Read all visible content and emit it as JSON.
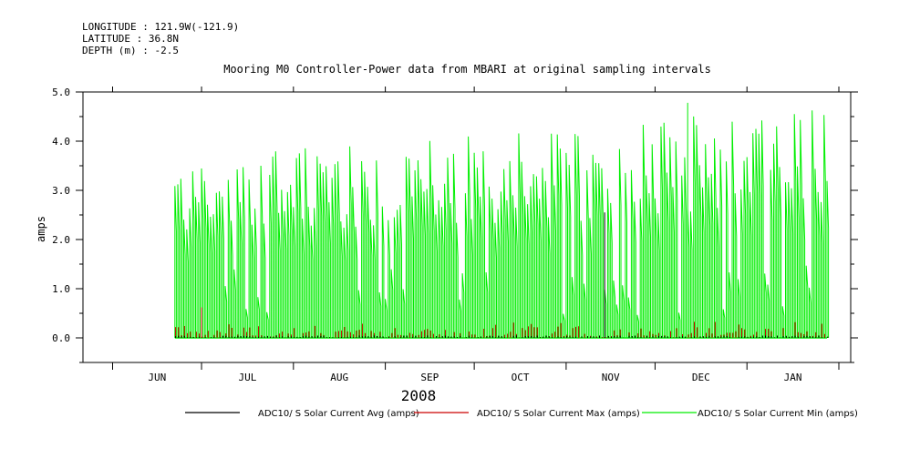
{
  "header": {
    "longitude": "LONGITUDE : 121.9W(-121.9)",
    "latitude": "LATITUDE : 36.8N",
    "depth": "DEPTH (m) : -2.5"
  },
  "chart_data": {
    "type": "line",
    "title": "Mooring M0 Controller-Power data from MBARI at original sampling intervals",
    "ylabel": "amps",
    "xlabel": "2008",
    "ylim": [
      -0.5,
      5.0
    ],
    "yticks": [
      "5.0",
      "4.0",
      "3.0",
      "2.0",
      "1.0",
      "0.0"
    ],
    "ytick_values": [
      5.0,
      4.0,
      3.0,
      2.0,
      1.0,
      0.0
    ],
    "months": [
      "JUN",
      "JUL",
      "AUG",
      "SEP",
      "OCT",
      "NOV",
      "DEC",
      "JAN"
    ],
    "month_axis_start": "2008-05-22",
    "month_axis_end": "2009-02-05",
    "data_start": "2008-06-22",
    "data_end": "2009-01-28",
    "grid": false,
    "legend_placement": "bottom",
    "series": [
      {
        "name": "ADC10/ S Solar Current Avg (amps)",
        "color": "#000000",
        "typical_max": 0.05,
        "peak": {
          "date": "2008-11-14",
          "value": 2.55
        }
      },
      {
        "name": "ADC10/ S Solar Current Max (amps)",
        "color": "#cc0000",
        "typical_max": 0.35,
        "peak": {
          "date": "2008-07-01",
          "value": 0.62
        }
      },
      {
        "name": "ADC10/ S Solar Current Min (amps)",
        "color": "#00ee00",
        "typical_max": 4.3,
        "peak": {
          "date": "2008-12-12",
          "value": 4.78
        }
      }
    ]
  }
}
